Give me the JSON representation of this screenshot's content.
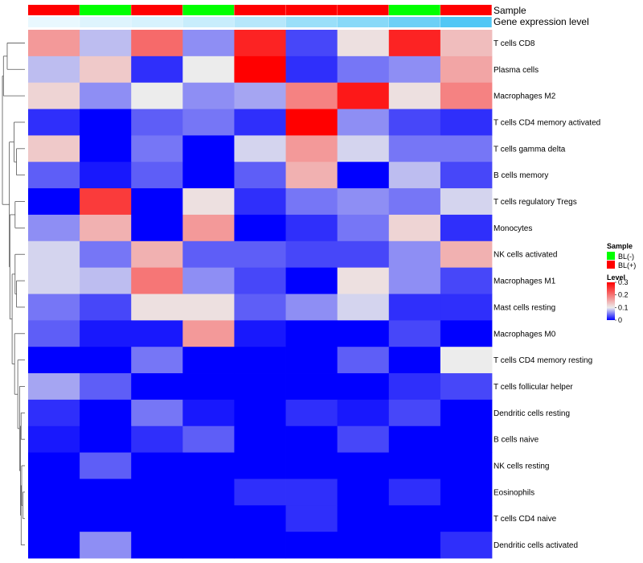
{
  "chart_data": {
    "type": "heatmap",
    "rows": [
      "T cells CD8",
      "Plasma cells",
      "Macrophages M2",
      "T cells CD4 memory activated",
      "T cells gamma delta",
      "B cells memory",
      "T cells regulatory  Tregs",
      "Monocytes",
      "NK cells activated",
      "Macrophages M1",
      "Mast cells resting",
      "Macrophages M0",
      "T cells CD4 memory resting",
      "T cells follicular helper",
      "Dendritic cells resting",
      "B cells naive",
      "NK cells resting",
      "Eosinophils",
      "T cells CD4 naive",
      "Dendritic cells activated"
    ],
    "values": [
      [
        0.17,
        0.08,
        0.21,
        0.06,
        0.27,
        0.03,
        0.11,
        0.27,
        0.14
      ],
      [
        0.08,
        0.13,
        0.02,
        0.1,
        0.3,
        0.02,
        0.05,
        0.06,
        0.16
      ],
      [
        0.12,
        0.06,
        0.1,
        0.06,
        0.07,
        0.19,
        0.28,
        0.11,
        0.19
      ],
      [
        0.02,
        0.0,
        0.04,
        0.05,
        0.02,
        0.3,
        0.06,
        0.03,
        0.02
      ],
      [
        0.13,
        0.0,
        0.05,
        0.0,
        0.09,
        0.17,
        0.09,
        0.05,
        0.05
      ],
      [
        0.04,
        0.01,
        0.04,
        0.0,
        0.04,
        0.15,
        0.0,
        0.08,
        0.03
      ],
      [
        0.0,
        0.25,
        0.0,
        0.11,
        0.02,
        0.05,
        0.06,
        0.05,
        0.09
      ],
      [
        0.06,
        0.15,
        0.0,
        0.17,
        0.0,
        0.02,
        0.05,
        0.12,
        0.02
      ],
      [
        0.09,
        0.05,
        0.15,
        0.04,
        0.04,
        0.03,
        0.03,
        0.06,
        0.15
      ],
      [
        0.09,
        0.08,
        0.2,
        0.06,
        0.03,
        0.0,
        0.11,
        0.06,
        0.03
      ],
      [
        0.05,
        0.03,
        0.11,
        0.11,
        0.04,
        0.06,
        0.09,
        0.02,
        0.02
      ],
      [
        0.04,
        0.01,
        0.01,
        0.17,
        0.01,
        0.0,
        0.0,
        0.03,
        0.0
      ],
      [
        0.0,
        0.0,
        0.05,
        0.0,
        0.0,
        0.0,
        0.04,
        0.0,
        0.1
      ],
      [
        0.07,
        0.04,
        0.0,
        0.0,
        0.0,
        0.0,
        0.0,
        0.02,
        0.03
      ],
      [
        0.02,
        0.0,
        0.05,
        0.01,
        0.0,
        0.02,
        0.01,
        0.03,
        0.0
      ],
      [
        0.01,
        0.0,
        0.02,
        0.04,
        0.0,
        0.0,
        0.03,
        0.0,
        0.0
      ],
      [
        0.0,
        0.04,
        0.0,
        0.0,
        0.0,
        0.0,
        0.0,
        0.0,
        0.0
      ],
      [
        0.0,
        0.0,
        0.0,
        0.0,
        0.02,
        0.02,
        0.0,
        0.02,
        0.0
      ],
      [
        0.0,
        0.0,
        0.0,
        0.0,
        0.0,
        0.02,
        0.0,
        0.0,
        0.0
      ],
      [
        0.0,
        0.06,
        0.0,
        0.0,
        0.0,
        0.0,
        0.0,
        0.0,
        0.02
      ]
    ],
    "column_annotations": [
      {
        "name": "Sample",
        "values": [
          "BL(+)",
          "BL(-)",
          "BL(+)",
          "BL(-)",
          "BL(+)",
          "BL(+)",
          "BL(+)",
          "BL(-)",
          "BL(+)"
        ]
      },
      {
        "name": "Gene expression level",
        "values": [
          0.12,
          0.18,
          0.22,
          0.3,
          0.4,
          0.55,
          0.65,
          0.8,
          0.95
        ]
      }
    ],
    "color_scale": {
      "min": 0,
      "max": 0.3,
      "colors": [
        "#0000ff",
        "#ececec",
        "#ff0000"
      ],
      "ticks": [
        "0",
        "0.1",
        "0.2",
        "0.3"
      ]
    },
    "legend": {
      "position": "right",
      "sample_title": "Sample",
      "sample_entries": [
        {
          "label": "BL(-)",
          "color": "#00ff00"
        },
        {
          "label": "BL(+)",
          "color": "#ff0000"
        }
      ],
      "level_title": "Level"
    },
    "dendrogram": "rows"
  }
}
